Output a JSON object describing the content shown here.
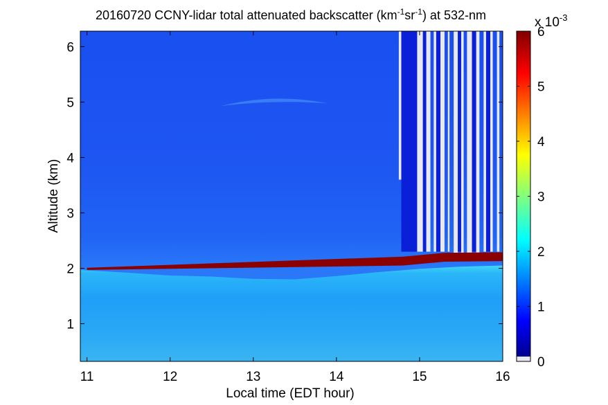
{
  "chart_data": {
    "type": "heatmap",
    "title": {
      "prefix": "20160720 CCNY-lidar total attenuated backscatter (km",
      "sup1": "-1",
      "mid": "sr",
      "sup2": "-1",
      "suffix": ") at 532-nm"
    },
    "xlabel": "Local time (EDT hour)",
    "ylabel": "Altitude (km)",
    "xlim": [
      10.92,
      16.0
    ],
    "ylim": [
      0.32,
      6.28
    ],
    "x_ticks": [
      11,
      12,
      13,
      14,
      15,
      16
    ],
    "x_tick_labels": [
      "11",
      "12",
      "13",
      "14",
      "15",
      "16"
    ],
    "y_ticks": [
      1,
      2,
      3,
      4,
      5,
      6
    ],
    "y_tick_labels": [
      "1",
      "2",
      "3",
      "4",
      "5",
      "6"
    ],
    "colorbar": {
      "range": [
        0,
        6
      ],
      "ticks": [
        0,
        1,
        2,
        3,
        4,
        5,
        6
      ],
      "tick_labels": [
        "0",
        "1",
        "2",
        "3",
        "4",
        "5",
        "6"
      ],
      "multiplier_base": "x 10",
      "multiplier_exp": "-3",
      "colormap": "jet",
      "below_min_color": "#e8e8f0"
    },
    "layers": {
      "boundary_layer_top_km": [
        {
          "t": 10.92,
          "z": 1.97
        },
        {
          "t": 11.5,
          "z": 1.92
        },
        {
          "t": 12.0,
          "z": 1.87
        },
        {
          "t": 12.5,
          "z": 1.85
        },
        {
          "t": 13.0,
          "z": 1.81
        },
        {
          "t": 13.5,
          "z": 1.8
        },
        {
          "t": 14.0,
          "z": 1.86
        },
        {
          "t": 14.5,
          "z": 1.93
        },
        {
          "t": 15.0,
          "z": 1.99
        },
        {
          "t": 15.5,
          "z": 2.03
        },
        {
          "t": 16.0,
          "z": 2.05
        }
      ],
      "cloud_base_km": [
        {
          "t": 11.0,
          "z": 1.97
        },
        {
          "t": 14.8,
          "z": 2.05
        },
        {
          "t": 15.3,
          "z": 2.12
        },
        {
          "t": 16.0,
          "z": 2.13
        }
      ],
      "elevated_aerosol_layer": {
        "t_start": 12.6,
        "t_end": 13.9,
        "z": 5.0
      }
    }
  }
}
